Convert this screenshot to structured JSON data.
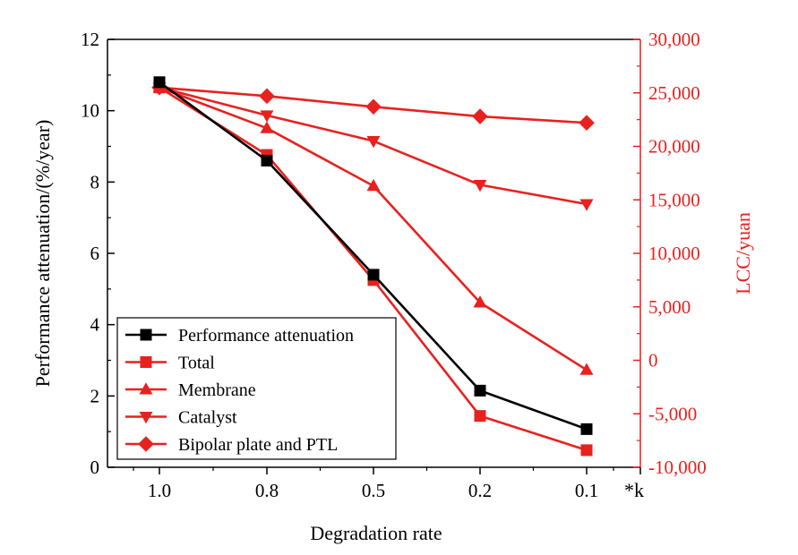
{
  "chart_data": {
    "type": "line",
    "title": "",
    "xlabel": "Degradation rate",
    "x_unit_label": "*k",
    "categories": [
      "1.0",
      "0.8",
      "0.5",
      "0.2",
      "0.1"
    ],
    "y_left": {
      "label": "Performance attenuation/(%/year)",
      "ylim": [
        0,
        12
      ],
      "ticks": [
        "0",
        "2",
        "4",
        "6",
        "8",
        "10",
        "12"
      ],
      "color": "#000000"
    },
    "y_right": {
      "label": "LCC/yuan",
      "ylim": [
        -10000,
        30000
      ],
      "ticks": [
        "-10,000",
        "-5,000",
        "0",
        "5,000",
        "10,000",
        "15,000",
        "20,000",
        "25,000",
        "30,000"
      ],
      "color": "#e8211f"
    },
    "series": [
      {
        "name": "Performance attenuation",
        "axis": "left",
        "marker": "square",
        "color": "#000000",
        "values": [
          10.8,
          8.6,
          5.4,
          2.15,
          1.07
        ]
      },
      {
        "name": "Total",
        "axis": "right",
        "marker": "square",
        "color": "#e8211f",
        "values": [
          25500,
          19200,
          7500,
          -5200,
          -8400
        ]
      },
      {
        "name": "Membrane",
        "axis": "right",
        "marker": "triangle-up",
        "color": "#e8211f",
        "values": [
          25500,
          21700,
          16300,
          5400,
          -900
        ]
      },
      {
        "name": "Catalyst",
        "axis": "right",
        "marker": "triangle-down",
        "color": "#e8211f",
        "values": [
          25500,
          22900,
          20500,
          16400,
          14600
        ]
      },
      {
        "name": "Bipolar plate and PTL",
        "axis": "right",
        "marker": "diamond",
        "color": "#e8211f",
        "values": [
          25500,
          24700,
          23700,
          22800,
          22200
        ]
      }
    ],
    "legend": {
      "position": "bottom-left"
    },
    "grid": false
  }
}
